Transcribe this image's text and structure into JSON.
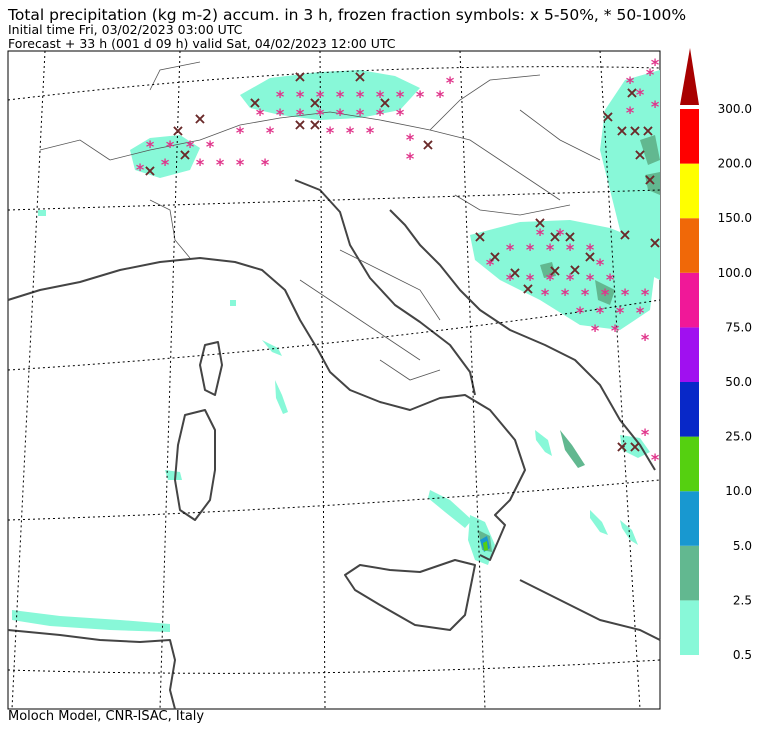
{
  "header": {
    "title": "Total precipitation (kg m-2) accum. in 3 h, frozen fraction symbols: x 5-50%, * 50-100%",
    "initial_time": "Initial time  Fri, 03/02/2023  03:00 UTC",
    "forecast": "Forecast  +  33 h  (001 d 09 h)  valid Sat, 04/02/2023 12:00 UTC"
  },
  "footer": {
    "credit": "Moloch Model, CNR-ISAC, Italy"
  },
  "legend": {
    "levels": [
      {
        "label": "0.5",
        "color": "#88f8d8"
      },
      {
        "label": "2.5",
        "color": "#62b890"
      },
      {
        "label": "5.0",
        "color": "#1898d0"
      },
      {
        "label": "10.0",
        "color": "#55d010"
      },
      {
        "label": "25.0",
        "color": "#0828c8"
      },
      {
        "label": "50.0",
        "color": "#a010f0"
      },
      {
        "label": "75.0",
        "color": "#f01898"
      },
      {
        "label": "100.0",
        "color": "#f06808"
      },
      {
        "label": "150.0",
        "color": "#ffff00"
      },
      {
        "label": "200.0",
        "color": "#ff0000"
      },
      {
        "label": "300.0",
        "color": "#a80000"
      }
    ]
  },
  "symbols": {
    "mixed": "×",
    "snow": "*",
    "mixed_color": "#6a2a2a",
    "snow_color": "#e0338a"
  }
}
